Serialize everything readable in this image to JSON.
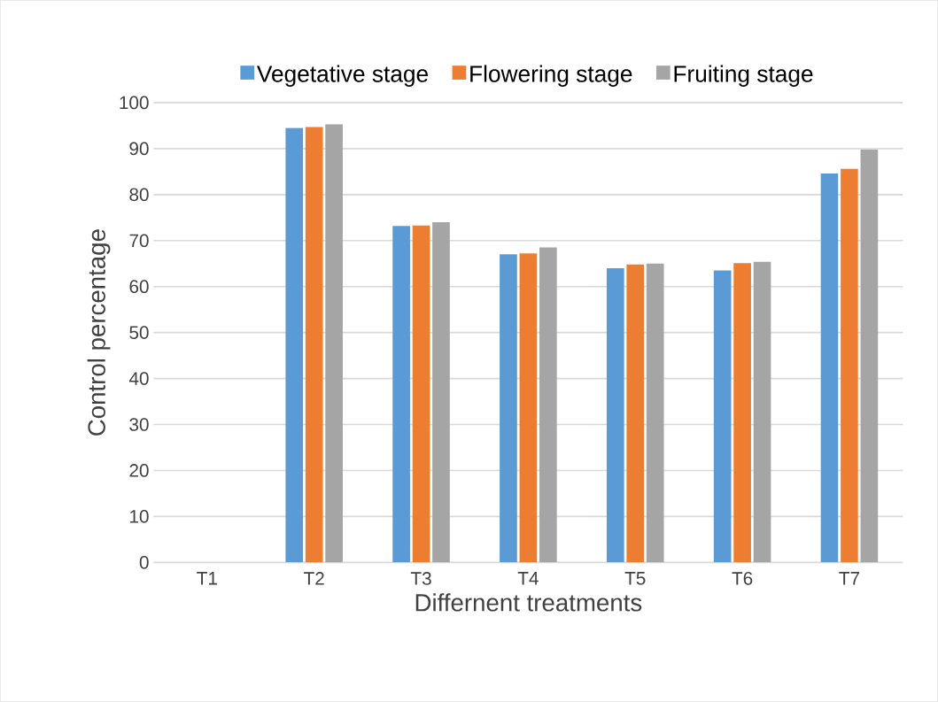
{
  "chart_data": {
    "type": "bar",
    "xlabel": "Differnent treatments",
    "ylabel": "Control percentage",
    "categories": [
      "T1",
      "T2",
      "T3",
      "T4",
      "T5",
      "T6",
      "T7"
    ],
    "series": [
      {
        "name": "Vegetative stage",
        "color": "#5b9bd5",
        "values": [
          0,
          94.5,
          73.2,
          67,
          64,
          63.5,
          84.6
        ]
      },
      {
        "name": "Flowering stage",
        "color": "#ed7d31",
        "values": [
          0,
          94.7,
          73.3,
          67.2,
          64.8,
          65.1,
          85.6
        ]
      },
      {
        "name": "Fruiting stage",
        "color": "#a5a5a5",
        "values": [
          0,
          95.3,
          74,
          68.5,
          65,
          65.4,
          89.8
        ]
      }
    ],
    "ylim": [
      0,
      100
    ],
    "yticks": [
      0,
      10,
      20,
      30,
      40,
      50,
      60,
      70,
      80,
      90,
      100
    ],
    "grid": "y",
    "legend": "top"
  }
}
